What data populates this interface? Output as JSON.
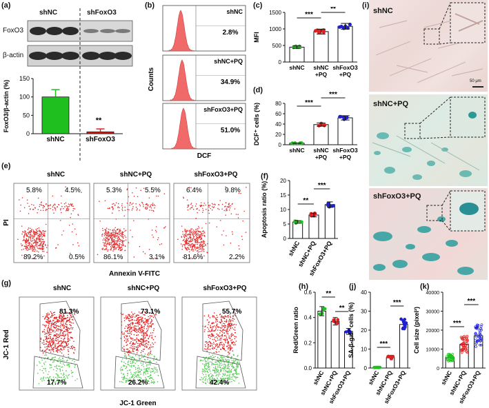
{
  "panels": {
    "a": "(a)",
    "b": "(b)",
    "c": "(c)",
    "d": "(d)",
    "e": "(e)",
    "f": "(f)",
    "g": "(g)",
    "h": "(h)",
    "i": "(i)",
    "j": "(j)",
    "k": "(k)"
  },
  "panel_a": {
    "groups": [
      "shNC",
      "shFoxO3"
    ],
    "blot_labels": [
      "FoxO3",
      "β-actin"
    ],
    "ylabel": "FoxO3/β-actin (%)",
    "yticks": [
      "0",
      "50",
      "100",
      "150"
    ],
    "categories": [
      "shNC",
      "shFoxO3"
    ],
    "values": [
      100,
      5
    ],
    "errors": [
      20,
      8
    ],
    "colors": [
      "#1fbf1f",
      "#e02020"
    ],
    "sig": "**"
  },
  "panel_b": {
    "ylabel": "Counts",
    "xlabel": "DCF",
    "hist": [
      {
        "name": "shNC",
        "pct": "2.8%"
      },
      {
        "name": "shNC+PQ",
        "pct": "34.9%"
      },
      {
        "name": "shFoxO3+PQ",
        "pct": "51.0%"
      }
    ]
  },
  "panel_c": {
    "ylabel": "MFI",
    "yticks": [
      "0",
      "500",
      "1000",
      "1500"
    ],
    "categories": [
      "shNC",
      "shNC\n+PQ",
      "shFoxO3\n+PQ"
    ],
    "values": [
      450,
      920,
      1080
    ],
    "sig": [
      "***",
      "**"
    ]
  },
  "panel_d": {
    "ylabel": "DCF⁺ cells (%)",
    "yticks": [
      "0",
      "20",
      "40",
      "60",
      "80"
    ],
    "categories": [
      "shNC",
      "shNC\n+PQ",
      "shFoxO3\n+PQ"
    ],
    "values": [
      3,
      39,
      52
    ],
    "sig": [
      "***",
      "***"
    ]
  },
  "panel_e": {
    "ylabel": "PI",
    "xlabel": "Annexin V-FITC",
    "plots": [
      {
        "name": "shNC",
        "q": [
          "5.8%",
          "4.5%",
          "89.2%",
          "0.5%"
        ]
      },
      {
        "name": "shNC+PQ",
        "q": [
          "5.3%",
          "5.5%",
          "86.1%",
          "3.1%"
        ]
      },
      {
        "name": "shFoxO3+PQ",
        "q": [
          "6.4%",
          "9.8%",
          "81.6%",
          "2.2%"
        ]
      }
    ]
  },
  "panel_f": {
    "ylabel": "Apoptosis ratio (%)",
    "yticks": [
      "0",
      "5",
      "10",
      "15",
      "20"
    ],
    "categories": [
      "shNC",
      "shNC+PQ",
      "shFoxO3+PQ"
    ],
    "values": [
      5.7,
      8.1,
      11.7
    ],
    "colors": [
      "#1fbf1f",
      "#e02020",
      "#2020d0"
    ],
    "sig": [
      "**",
      "***"
    ]
  },
  "panel_g": {
    "ylabel": "JC-1 Red",
    "xlabel": "JC-1 Green",
    "plots": [
      {
        "name": "shNC",
        "red": "81.3%",
        "green": "17.7%"
      },
      {
        "name": "shNC+PQ",
        "red": "73.1%",
        "green": "26.2%"
      },
      {
        "name": "shFoxO3+PQ",
        "red": "55.7%",
        "green": "42.4%"
      }
    ]
  },
  "panel_h": {
    "ylabel": "Red/Green ratio",
    "yticks": [
      "0.0",
      "0.2",
      "0.4",
      "0.6"
    ],
    "categories": [
      "shNC",
      "shNC+PQ",
      "shFoxO3+PQ"
    ],
    "values": [
      0.45,
      0.37,
      0.29
    ],
    "colors": [
      "#1fbf1f",
      "#e02020",
      "#2020d0"
    ],
    "sig": [
      "**",
      "**"
    ]
  },
  "panel_i": {
    "labels": [
      "shNC",
      "shNC+PQ",
      "shFoxO3+PQ"
    ],
    "scale": "50 μm"
  },
  "panel_j": {
    "ylabel": "SA-β-gal⁺ cells (%)",
    "yticks": [
      "0",
      "10",
      "20",
      "30",
      "40"
    ],
    "categories": [
      "shNC",
      "shNC+PQ",
      "shFoxO3+PQ"
    ],
    "values": [
      0.3,
      5.5,
      23
    ],
    "colors": [
      "#1fbf1f",
      "#e02020",
      "#2020d0"
    ],
    "sig": [
      "***",
      "***"
    ]
  },
  "panel_k": {
    "ylabel": "Cell size (pixel²)",
    "yticks": [
      "0",
      "10000",
      "20000",
      "30000",
      "40000"
    ],
    "categories": [
      "shNC",
      "shNC+PQ",
      "shFoxO3+PQ"
    ],
    "values": [
      5500,
      12500,
      17000
    ],
    "colors": [
      "#1fbf1f",
      "#e02020",
      "#2020d0"
    ],
    "sig": [
      "***",
      "***"
    ]
  }
}
